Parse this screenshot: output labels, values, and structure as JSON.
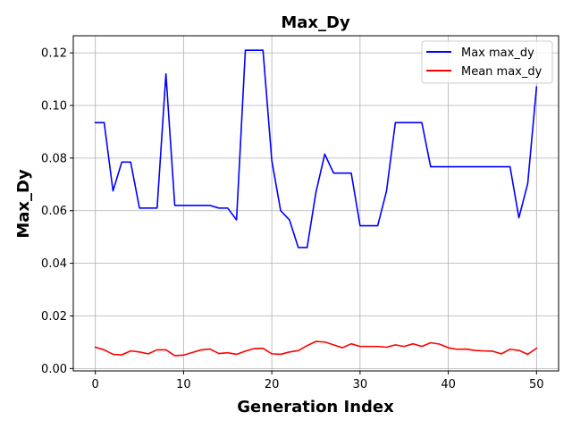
{
  "chart_data": {
    "type": "line",
    "title": "Max_Dy",
    "xlabel": "Generation Index",
    "ylabel": "Max_Dy",
    "xlim": [
      -2.5,
      52.5
    ],
    "ylim": [
      -0.0009,
      0.1265
    ],
    "grid": true,
    "legend_position": "top-right",
    "x_ticks": [
      0,
      10,
      20,
      30,
      40,
      50
    ],
    "x_tick_labels": [
      "0",
      "10",
      "20",
      "30",
      "40",
      "50"
    ],
    "y_ticks": [
      0.0,
      0.02,
      0.04,
      0.06,
      0.08,
      0.1,
      0.12
    ],
    "y_tick_labels": [
      "0.00",
      "0.02",
      "0.04",
      "0.06",
      "0.08",
      "0.10",
      "0.12"
    ],
    "x": [
      0,
      1,
      2,
      3,
      4,
      5,
      6,
      7,
      8,
      9,
      10,
      11,
      12,
      13,
      14,
      15,
      16,
      17,
      18,
      19,
      20,
      21,
      22,
      23,
      24,
      25,
      26,
      27,
      28,
      29,
      30,
      31,
      32,
      33,
      34,
      35,
      36,
      37,
      38,
      39,
      40,
      41,
      42,
      43,
      44,
      45,
      46,
      47,
      48,
      49,
      50
    ],
    "series": [
      {
        "name": "Max max_dy",
        "color": "#0000ff",
        "values": [
          0.0935,
          0.0935,
          0.0675,
          0.0785,
          0.0785,
          0.061,
          0.061,
          0.061,
          0.112,
          0.062,
          0.062,
          0.062,
          0.062,
          0.062,
          0.061,
          0.061,
          0.0565,
          0.121,
          0.121,
          0.121,
          0.079,
          0.06,
          0.0565,
          0.046,
          0.046,
          0.067,
          0.0815,
          0.0743,
          0.0743,
          0.0743,
          0.0543,
          0.0543,
          0.0543,
          0.0675,
          0.0935,
          0.0935,
          0.0935,
          0.0935,
          0.0767,
          0.0767,
          0.0767,
          0.0767,
          0.0767,
          0.0767,
          0.0767,
          0.0767,
          0.0767,
          0.0767,
          0.0573,
          0.0703,
          0.107
        ]
      },
      {
        "name": "Mean max_dy",
        "color": "#ff0000",
        "values": [
          0.0081,
          0.0071,
          0.0054,
          0.0052,
          0.0067,
          0.0063,
          0.0056,
          0.0071,
          0.0071,
          0.0049,
          0.0051,
          0.0061,
          0.0071,
          0.0074,
          0.0057,
          0.006,
          0.0054,
          0.0066,
          0.0076,
          0.0077,
          0.0056,
          0.0054,
          0.0063,
          0.0068,
          0.0087,
          0.0103,
          0.0101,
          0.009,
          0.0079,
          0.0094,
          0.0084,
          0.0084,
          0.0084,
          0.0081,
          0.009,
          0.0084,
          0.0094,
          0.0084,
          0.0098,
          0.0093,
          0.0079,
          0.0073,
          0.0074,
          0.0069,
          0.0067,
          0.0066,
          0.0056,
          0.0073,
          0.0069,
          0.0054,
          0.0077
        ]
      }
    ]
  }
}
